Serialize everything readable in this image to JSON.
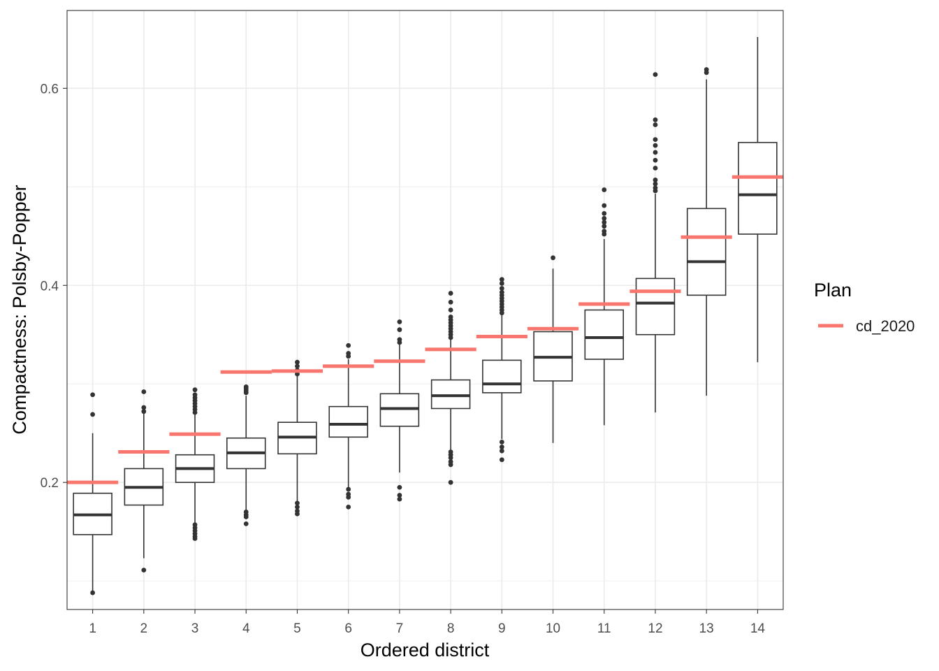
{
  "chart_data": {
    "type": "box",
    "xlabel": "Ordered district",
    "ylabel": "Compactness: Polsby-Popper",
    "categories": [
      "1",
      "2",
      "3",
      "4",
      "5",
      "6",
      "7",
      "8",
      "9",
      "10",
      "11",
      "12",
      "13",
      "14"
    ],
    "ylim": [
      0.071,
      0.679
    ],
    "yticks": [
      0.2,
      0.4,
      0.6
    ],
    "ytick_labels": [
      "0.2",
      "0.4",
      "0.6"
    ],
    "grid": true,
    "legend": {
      "title": "Plan",
      "position": "right",
      "entries": [
        {
          "label": "cd_2020",
          "color": "#F8766D"
        }
      ]
    },
    "colors": {
      "box_stroke": "#333333",
      "reference": "#F8766D",
      "grid": "#EBEBEB"
    },
    "boxes": [
      {
        "district": "1",
        "q1": 0.147,
        "median": 0.167,
        "q3": 0.189,
        "whisker_low": 0.09,
        "whisker_high": 0.25,
        "outliers": [
          0.269,
          0.289,
          0.088
        ]
      },
      {
        "district": "2",
        "q1": 0.177,
        "median": 0.195,
        "q3": 0.214,
        "whisker_low": 0.123,
        "whisker_high": 0.27,
        "outliers": [
          0.292,
          0.276,
          0.272,
          0.111
        ]
      },
      {
        "district": "3",
        "q1": 0.2,
        "median": 0.214,
        "q3": 0.228,
        "whisker_low": 0.159,
        "whisker_high": 0.269,
        "outliers": [
          0.294,
          0.289,
          0.286,
          0.283,
          0.28,
          0.277,
          0.274,
          0.271,
          0.157,
          0.154,
          0.151,
          0.148,
          0.145,
          0.143
        ]
      },
      {
        "district": "4",
        "q1": 0.214,
        "median": 0.23,
        "q3": 0.245,
        "whisker_low": 0.172,
        "whisker_high": 0.288,
        "outliers": [
          0.297,
          0.295,
          0.293,
          0.291,
          0.17,
          0.167,
          0.165,
          0.158
        ]
      },
      {
        "district": "5",
        "q1": 0.229,
        "median": 0.246,
        "q3": 0.261,
        "whisker_low": 0.181,
        "whisker_high": 0.308,
        "outliers": [
          0.322,
          0.318,
          0.314,
          0.31,
          0.179,
          0.175,
          0.171,
          0.168
        ]
      },
      {
        "district": "6",
        "q1": 0.246,
        "median": 0.259,
        "q3": 0.277,
        "whisker_low": 0.195,
        "whisker_high": 0.325,
        "outliers": [
          0.339,
          0.331,
          0.328,
          0.193,
          0.188,
          0.185,
          0.175
        ]
      },
      {
        "district": "7",
        "q1": 0.257,
        "median": 0.275,
        "q3": 0.29,
        "whisker_low": 0.21,
        "whisker_high": 0.34,
        "outliers": [
          0.363,
          0.355,
          0.345,
          0.342,
          0.195,
          0.187,
          0.183
        ]
      },
      {
        "district": "8",
        "q1": 0.275,
        "median": 0.288,
        "q3": 0.304,
        "whisker_low": 0.232,
        "whisker_high": 0.346,
        "outliers": [
          0.392,
          0.383,
          0.375,
          0.368,
          0.365,
          0.362,
          0.359,
          0.356,
          0.353,
          0.35,
          0.347,
          0.231,
          0.228,
          0.225,
          0.221,
          0.218,
          0.2
        ]
      },
      {
        "district": "9",
        "q1": 0.291,
        "median": 0.3,
        "q3": 0.324,
        "whisker_low": 0.244,
        "whisker_high": 0.37,
        "outliers": [
          0.406,
          0.402,
          0.397,
          0.393,
          0.39,
          0.387,
          0.384,
          0.381,
          0.378,
          0.375,
          0.372,
          0.241,
          0.236,
          0.232,
          0.223
        ]
      },
      {
        "district": "10",
        "q1": 0.303,
        "median": 0.327,
        "q3": 0.353,
        "whisker_low": 0.24,
        "whisker_high": 0.417,
        "outliers": [
          0.428
        ]
      },
      {
        "district": "11",
        "q1": 0.325,
        "median": 0.347,
        "q3": 0.375,
        "whisker_low": 0.258,
        "whisker_high": 0.447,
        "outliers": [
          0.497,
          0.481,
          0.473,
          0.468,
          0.464,
          0.46,
          0.455,
          0.452
        ]
      },
      {
        "district": "12",
        "q1": 0.35,
        "median": 0.382,
        "q3": 0.407,
        "whisker_low": 0.271,
        "whisker_high": 0.493,
        "outliers": [
          0.614,
          0.568,
          0.563,
          0.548,
          0.542,
          0.535,
          0.527,
          0.519,
          0.507,
          0.503,
          0.499,
          0.496
        ]
      },
      {
        "district": "13",
        "q1": 0.39,
        "median": 0.424,
        "q3": 0.478,
        "whisker_low": 0.288,
        "whisker_high": 0.609,
        "outliers": [
          0.619,
          0.616
        ]
      },
      {
        "district": "14",
        "q1": 0.452,
        "median": 0.492,
        "q3": 0.545,
        "whisker_low": 0.322,
        "whisker_high": 0.652,
        "outliers": []
      }
    ],
    "reference": {
      "name": "cd_2020",
      "values": [
        0.2,
        0.231,
        0.249,
        0.312,
        0.313,
        0.318,
        0.323,
        0.335,
        0.348,
        0.356,
        0.381,
        0.394,
        0.449,
        0.51
      ]
    }
  }
}
